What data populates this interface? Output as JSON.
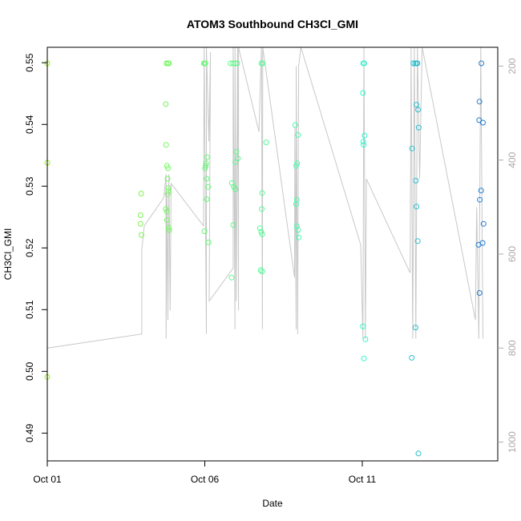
{
  "chart_data": {
    "type": "scatter",
    "title": "ATOM3 Southbound CH3Cl_GMI",
    "xlabel": "Date",
    "ylabel": "CH3Cl_GMI",
    "xlim": [
      0,
      14.3
    ],
    "ylim": [
      0.4855,
      0.5525
    ],
    "x_ticks": [
      {
        "value": 0,
        "label": "Oct 01"
      },
      {
        "value": 5,
        "label": "Oct 06"
      },
      {
        "value": 10,
        "label": "Oct 11"
      }
    ],
    "y_ticks": [
      {
        "value": 0.49,
        "label": "0.49"
      },
      {
        "value": 0.5,
        "label": "0.50"
      },
      {
        "value": 0.51,
        "label": "0.51"
      },
      {
        "value": 0.52,
        "label": "0.52"
      },
      {
        "value": 0.53,
        "label": "0.53"
      },
      {
        "value": 0.54,
        "label": "0.54"
      },
      {
        "value": 0.55,
        "label": "0.55"
      }
    ],
    "right_axis": {
      "ylim": [
        1040,
        160
      ],
      "ticks": [
        {
          "value": 200,
          "label": "200"
        },
        {
          "value": 400,
          "label": "400"
        },
        {
          "value": 600,
          "label": "600"
        },
        {
          "value": 800,
          "label": "800"
        },
        {
          "value": 1000,
          "label": "1000"
        }
      ],
      "color": "#aaaaaa"
    },
    "grid": false,
    "point_color_start": "#9ef01a",
    "point_color_mid": "#33ffcc",
    "point_color_end": "#1f77d4",
    "line_color": "#c8c8c8",
    "points": [
      [
        0.0,
        0.5499
      ],
      [
        0.0,
        0.5338
      ],
      [
        0.0,
        0.4991
      ],
      [
        2.98,
        0.5288
      ],
      [
        2.96,
        0.5253
      ],
      [
        2.96,
        0.5239
      ],
      [
        2.99,
        0.5221
      ],
      [
        3.78,
        0.5499
      ],
      [
        3.76,
        0.5433
      ],
      [
        3.77,
        0.5367
      ],
      [
        3.8,
        0.5333
      ],
      [
        3.83,
        0.5329
      ],
      [
        3.82,
        0.5312
      ],
      [
        3.84,
        0.5297
      ],
      [
        3.84,
        0.5292
      ],
      [
        3.82,
        0.5287
      ],
      [
        3.76,
        0.5263
      ],
      [
        3.8,
        0.5259
      ],
      [
        3.8,
        0.5245
      ],
      [
        3.85,
        0.5233
      ],
      [
        3.87,
        0.5229
      ],
      [
        3.83,
        0.5499
      ],
      [
        3.86,
        0.5499
      ],
      [
        4.97,
        0.5499
      ],
      [
        4.99,
        0.5499
      ],
      [
        5.02,
        0.5499
      ],
      [
        5.07,
        0.5347
      ],
      [
        5.04,
        0.5337
      ],
      [
        5.03,
        0.5333
      ],
      [
        5.01,
        0.5329
      ],
      [
        5.06,
        0.5312
      ],
      [
        5.11,
        0.5299
      ],
      [
        5.06,
        0.5279
      ],
      [
        4.99,
        0.5227
      ],
      [
        5.12,
        0.5209
      ],
      [
        5.82,
        0.5499
      ],
      [
        5.9,
        0.5499
      ],
      [
        5.97,
        0.5499
      ],
      [
        6.03,
        0.5499
      ],
      [
        6.0,
        0.5356
      ],
      [
        6.05,
        0.5345
      ],
      [
        5.97,
        0.5339
      ],
      [
        5.86,
        0.5305
      ],
      [
        5.92,
        0.5299
      ],
      [
        5.97,
        0.5295
      ],
      [
        5.9,
        0.5237
      ],
      [
        5.85,
        0.5152
      ],
      [
        6.8,
        0.5499
      ],
      [
        6.84,
        0.5499
      ],
      [
        6.95,
        0.5371
      ],
      [
        6.82,
        0.5289
      ],
      [
        6.81,
        0.5263
      ],
      [
        6.75,
        0.5232
      ],
      [
        6.79,
        0.5226
      ],
      [
        6.82,
        0.5222
      ],
      [
        6.77,
        0.5164
      ],
      [
        6.82,
        0.5162
      ],
      [
        7.87,
        0.5399
      ],
      [
        7.96,
        0.5383
      ],
      [
        7.93,
        0.5337
      ],
      [
        7.9,
        0.5333
      ],
      [
        7.92,
        0.5278
      ],
      [
        7.9,
        0.5271
      ],
      [
        7.92,
        0.5235
      ],
      [
        7.96,
        0.5229
      ],
      [
        7.98,
        0.5217
      ],
      [
        10.03,
        0.5499
      ],
      [
        10.06,
        0.5499
      ],
      [
        10.02,
        0.5451
      ],
      [
        10.07,
        0.5382
      ],
      [
        10.03,
        0.5372
      ],
      [
        10.04,
        0.5367
      ],
      [
        10.02,
        0.5073
      ],
      [
        10.1,
        0.5052
      ],
      [
        10.05,
        0.5021
      ],
      [
        11.62,
        0.5499
      ],
      [
        11.68,
        0.5499
      ],
      [
        11.73,
        0.5499
      ],
      [
        11.75,
        0.5499
      ],
      [
        11.72,
        0.5432
      ],
      [
        11.77,
        0.5424
      ],
      [
        11.79,
        0.5395
      ],
      [
        11.58,
        0.5361
      ],
      [
        11.7,
        0.5309
      ],
      [
        11.72,
        0.5267
      ],
      [
        11.76,
        0.5211
      ],
      [
        11.69,
        0.5071
      ],
      [
        11.57,
        0.5022
      ],
      [
        11.78,
        0.4867
      ],
      [
        13.78,
        0.5499
      ],
      [
        13.72,
        0.5437
      ],
      [
        13.71,
        0.5407
      ],
      [
        13.83,
        0.5403
      ],
      [
        13.77,
        0.5293
      ],
      [
        13.73,
        0.5278
      ],
      [
        13.85,
        0.5239
      ],
      [
        13.82,
        0.5208
      ],
      [
        13.69,
        0.5205
      ],
      [
        13.72,
        0.5127
      ]
    ],
    "altitude_path": [
      [
        0.0,
        160
      ],
      [
        0.0,
        800
      ],
      [
        3.0,
        770
      ],
      [
        3.0,
        590
      ],
      [
        3.08,
        540
      ],
      [
        3.7,
        480
      ],
      [
        3.77,
        430
      ],
      [
        3.77,
        780
      ],
      [
        3.8,
        470
      ],
      [
        3.83,
        740
      ],
      [
        3.86,
        430
      ],
      [
        3.9,
        720
      ],
      [
        3.93,
        450
      ],
      [
        4.96,
        540
      ],
      [
        4.98,
        160
      ],
      [
        5.05,
        770
      ],
      [
        5.05,
        160
      ],
      [
        5.13,
        360
      ],
      [
        5.18,
        170
      ],
      [
        5.14,
        700
      ],
      [
        5.9,
        630
      ],
      [
        5.9,
        160
      ],
      [
        5.96,
        760
      ],
      [
        5.96,
        160
      ],
      [
        6.0,
        700
      ],
      [
        6.04,
        160
      ],
      [
        6.07,
        720
      ],
      [
        6.07,
        160
      ],
      [
        6.72,
        340
      ],
      [
        6.8,
        160
      ],
      [
        6.83,
        760
      ],
      [
        6.84,
        160
      ],
      [
        7.85,
        650
      ],
      [
        7.86,
        330
      ],
      [
        7.9,
        760
      ],
      [
        7.9,
        200
      ],
      [
        7.95,
        770
      ],
      [
        7.98,
        200
      ],
      [
        8.05,
        160
      ],
      [
        9.95,
        580
      ],
      [
        10.02,
        780
      ],
      [
        10.05,
        160
      ],
      [
        10.1,
        780
      ],
      [
        10.13,
        440
      ],
      [
        11.52,
        640
      ],
      [
        11.55,
        160
      ],
      [
        11.6,
        780
      ],
      [
        11.65,
        160
      ],
      [
        11.7,
        780
      ],
      [
        11.75,
        160
      ],
      [
        11.82,
        440
      ],
      [
        11.9,
        160
      ],
      [
        13.59,
        740
      ],
      [
        13.63,
        500
      ],
      [
        13.7,
        780
      ],
      [
        13.76,
        160
      ],
      [
        13.83,
        780
      ]
    ]
  }
}
